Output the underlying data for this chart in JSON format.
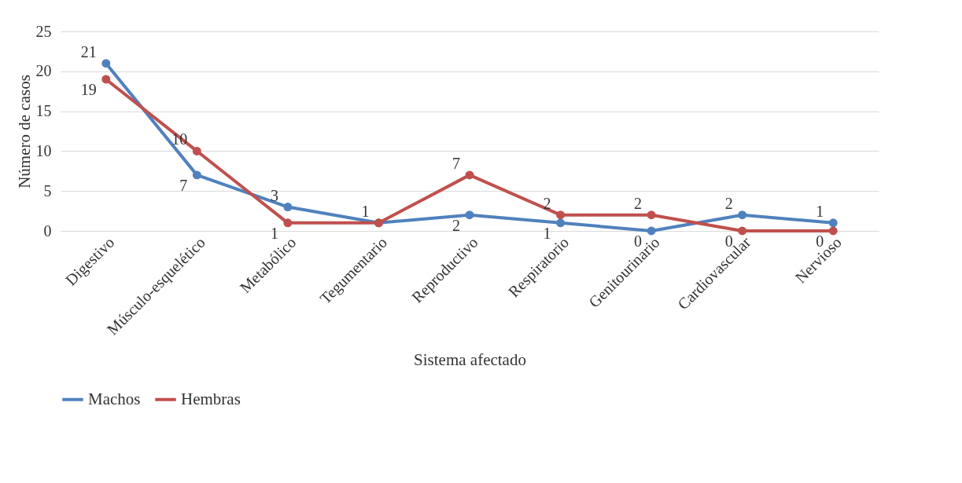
{
  "chart_data": {
    "type": "line",
    "xlabel": "Sistema afectado",
    "ylabel": "Número de casos",
    "categories": [
      "Digestivo",
      "Músculo-esquelético",
      "Metabólico",
      "Tegumentario",
      "Reproductivo",
      "Respiratorio",
      "Genitourinario",
      "Cardiovascular",
      "Nervioso"
    ],
    "series": [
      {
        "name": "Machos",
        "color": "#4f81bd",
        "values": [
          21,
          7,
          3,
          1,
          2,
          1,
          0,
          2,
          1
        ],
        "value_labels": [
          "21",
          "7",
          "3",
          "1",
          "2",
          "1",
          "0",
          "2",
          "1"
        ]
      },
      {
        "name": "Hembras",
        "color": "#c0504d",
        "values": [
          19,
          10,
          1,
          1,
          7,
          2,
          2,
          0,
          0
        ],
        "value_labels": [
          "19",
          "10",
          "1",
          null,
          "7",
          "2",
          "2",
          "0",
          "0"
        ]
      }
    ],
    "ylim": [
      0,
      25
    ],
    "yticks": [
      0,
      5,
      10,
      15,
      20,
      25
    ],
    "grid": "y",
    "legend": "bottom",
    "marker": "circle",
    "line_style": "solid"
  }
}
